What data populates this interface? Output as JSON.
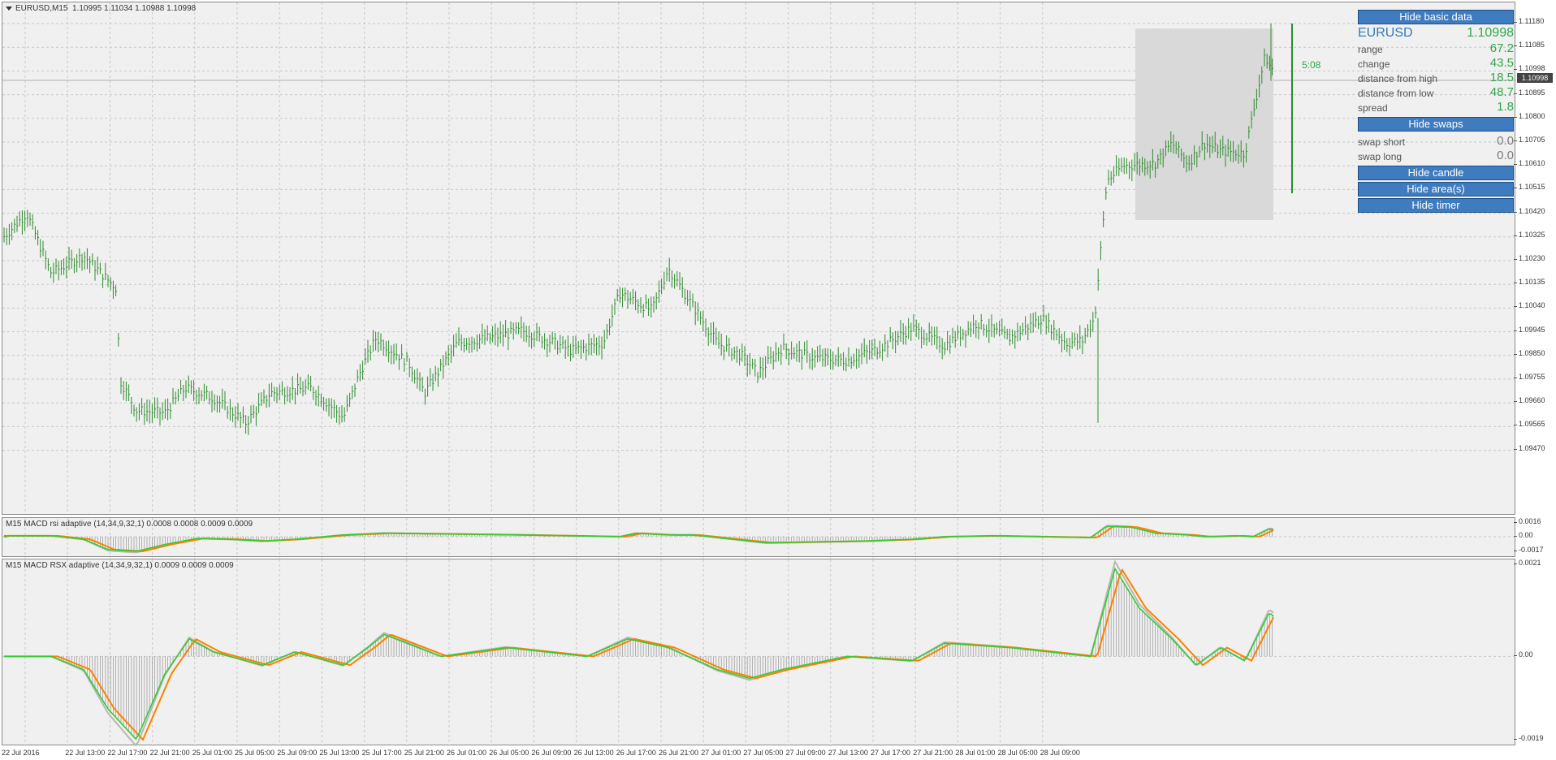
{
  "chart": {
    "symbol_title": "EURUSD,M15",
    "ohlc": "1.10995 1.11034 1.10988 1.10998",
    "price_ticks": [
      "1.11180",
      "1.11085",
      "1.10998",
      "1.10895",
      "1.10800",
      "1.10705",
      "1.10610",
      "1.10515",
      "1.10420",
      "1.10325",
      "1.10230",
      "1.10135",
      "1.10040",
      "1.09945",
      "1.09850",
      "1.09755",
      "1.09660",
      "1.09565",
      "1.09470"
    ],
    "current_price_tag": "1.10998",
    "timer": "5:08"
  },
  "indicator1": {
    "title": "M15 MACD rsi adaptive (14,34,9,32,1) 0.0008 0.0008 0.0009 0.0009",
    "ticks": [
      "0.0016",
      "0.00",
      "-0.0017"
    ]
  },
  "indicator2": {
    "title": "M15 MACD RSX adaptive (14,34,9,32,1) 0.0009 0.0009 0.0009",
    "ticks": [
      "0.0021",
      "0.00",
      "-0.0019"
    ]
  },
  "time_axis": [
    "22 Jul 2016",
    "22 Jul 13:00",
    "22 Jul 17:00",
    "22 Jul 21:00",
    "25 Jul 01:00",
    "25 Jul 05:00",
    "25 Jul 09:00",
    "25 Jul 13:00",
    "25 Jul 17:00",
    "25 Jul 21:00",
    "26 Jul 01:00",
    "26 Jul 05:00",
    "26 Jul 09:00",
    "26 Jul 13:00",
    "26 Jul 17:00",
    "26 Jul 21:00",
    "27 Jul 01:00",
    "27 Jul 05:00",
    "27 Jul 09:00",
    "27 Jul 13:00",
    "27 Jul 17:00",
    "27 Jul 21:00",
    "28 Jul 01:00",
    "28 Jul 05:00",
    "28 Jul 09:00"
  ],
  "hud": {
    "hide_basic_label": "Hide basic data",
    "symbol": "EURUSD",
    "price": "1.10998",
    "rows": [
      {
        "label": "range",
        "value": "67.2"
      },
      {
        "label": "change",
        "value": "43.5"
      },
      {
        "label": "distance from high",
        "value": "18.5"
      },
      {
        "label": "distance from low",
        "value": "48.7"
      },
      {
        "label": "spread",
        "value": "1.8"
      }
    ],
    "hide_swaps_label": "Hide swaps",
    "swaps": [
      {
        "label": "swap short",
        "value": "0.0"
      },
      {
        "label": "swap long",
        "value": "0.0"
      }
    ],
    "hide_candle_label": "Hide candle",
    "hide_area_label": "Hide area(s)",
    "hide_timer_label": "Hide timer"
  },
  "colors": {
    "bar": "#2e8b2e",
    "signal": "#ff8000",
    "macd": "#33cc33",
    "hist": "#a0a0a0",
    "area": "#d9d9d9",
    "button": "#3f7bbf"
  }
}
